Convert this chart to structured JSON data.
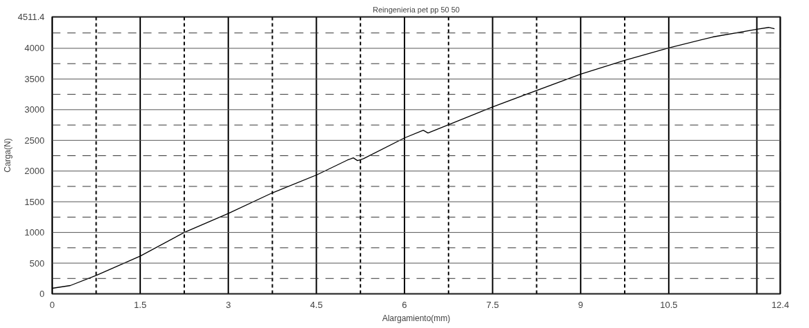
{
  "chart_data": {
    "type": "line",
    "title": "Reingenieria pet pp 50 50",
    "xlabel": "Alargamiento(mm)",
    "ylabel": "Carga(N)",
    "x": [
      0,
      0.31,
      0.75,
      1.5,
      2.25,
      3,
      3.75,
      4.5,
      5.03,
      5.13,
      5.2,
      5.3,
      6,
      6.32,
      6.4,
      7.5,
      9,
      9.75,
      10.5,
      11.25,
      12,
      12.2,
      12.3
    ],
    "series": [
      {
        "color": "#000000",
        "values": [
          90,
          135,
          300,
          615,
          1000,
          1310,
          1645,
          1935,
          2180,
          2215,
          2170,
          2200,
          2540,
          2665,
          2620,
          3045,
          3580,
          3805,
          4006,
          4185,
          4310,
          4340,
          4320
        ]
      }
    ],
    "xlim": [
      0,
      12.4
    ],
    "ylim": [
      0,
      4511.4
    ],
    "xticks": [
      0,
      1.5,
      3,
      4.5,
      6,
      7.5,
      9,
      10.5,
      {
        "value": 12,
        "label": null
      },
      12.4
    ],
    "yticks": [
      0,
      500,
      1000,
      1500,
      2000,
      2500,
      3000,
      3500,
      4000,
      4511.4
    ],
    "grid": true,
    "marker": "none",
    "line_style": "solid"
  }
}
